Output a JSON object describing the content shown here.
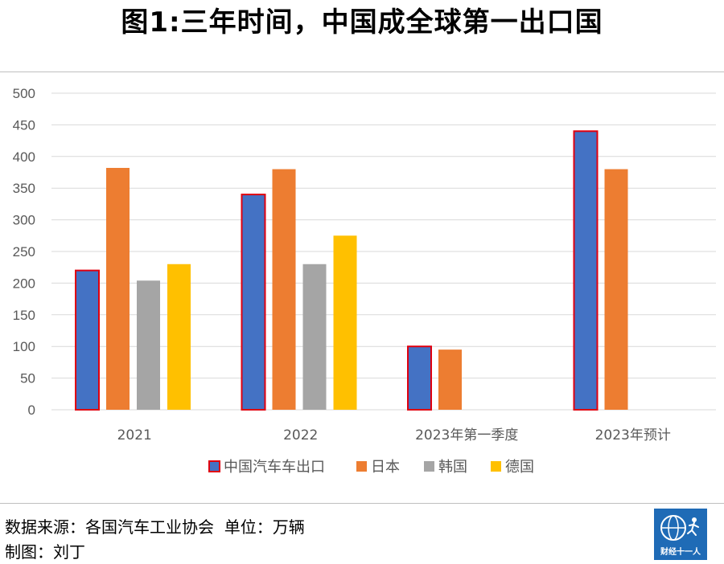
{
  "title": "图1:三年时间，中国成全球第一出口国",
  "footer": {
    "source": "数据来源：各国汽车工业协会  单位：万辆",
    "author": "制图：刘丁"
  },
  "logo": {
    "text": "财经十一人",
    "icon": "globe-runner-logo-icon"
  },
  "colors": {
    "china": "#4472C4",
    "china_border": "#E0000F",
    "japan": "#ED7D31",
    "korea": "#A5A5A5",
    "germany": "#FFC000",
    "grid": "#D9D9D9",
    "axis_text": "#595959"
  },
  "chart_data": {
    "type": "bar",
    "title": "",
    "xlabel": "",
    "ylabel": "",
    "ylim": [
      0,
      500
    ],
    "yticks": [
      0,
      50,
      100,
      150,
      200,
      250,
      300,
      350,
      400,
      450,
      500
    ],
    "categories": [
      "2021",
      "2022",
      "2023年第一季度",
      "2023年预计"
    ],
    "series": [
      {
        "name": "中国汽车车出口",
        "color": "#4472C4",
        "values": [
          220,
          340,
          100,
          440
        ]
      },
      {
        "name": "日本",
        "color": "#ED7D31",
        "values": [
          382,
          380,
          95,
          380
        ]
      },
      {
        "name": "韩国",
        "color": "#A5A5A5",
        "values": [
          204,
          230,
          null,
          null
        ]
      },
      {
        "name": "德国",
        "color": "#FFC000",
        "values": [
          230,
          275,
          null,
          null
        ]
      }
    ],
    "grid": true,
    "legend": "bottom"
  }
}
